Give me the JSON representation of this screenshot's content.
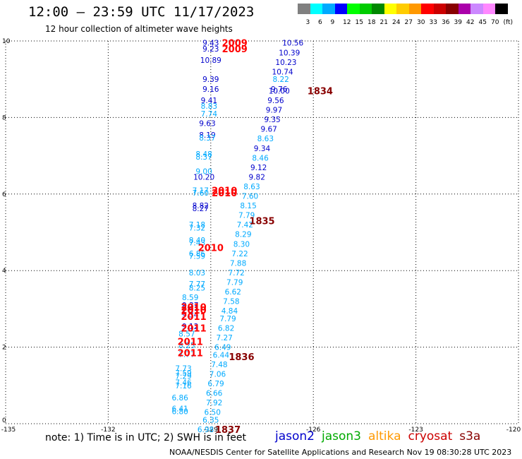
{
  "header": {
    "title": "12:00 — 23:59 UTC 11/17/2023",
    "subtitle": "12 hour collection of altimeter wave heights"
  },
  "colorbar": {
    "bins": [
      {
        "label": "3",
        "color": "#808080"
      },
      {
        "label": "6",
        "color": "#00ffff"
      },
      {
        "label": "9",
        "color": "#00aaff"
      },
      {
        "label": "12",
        "color": "#0000ff"
      },
      {
        "label": "15",
        "color": "#00ff00"
      },
      {
        "label": "18",
        "color": "#00cc00"
      },
      {
        "label": "21",
        "color": "#008800"
      },
      {
        "label": "24",
        "color": "#ffff00"
      },
      {
        "label": "27",
        "color": "#ffcc00"
      },
      {
        "label": "30",
        "color": "#ff9900"
      },
      {
        "label": "33",
        "color": "#ff0000"
      },
      {
        "label": "36",
        "color": "#cc0000"
      },
      {
        "label": "39",
        "color": "#880000"
      },
      {
        "label": "42",
        "color": "#aa00aa"
      },
      {
        "label": "45",
        "color": "#cc88ff"
      },
      {
        "label": "70",
        "color": "#ff88ff"
      },
      {
        "label": "(ft)",
        "color": "#000000"
      }
    ]
  },
  "footer": {
    "note": "note: 1) Time is in UTC; 2) SWH is in feet",
    "credit": "NOAA/NESDIS Center for Satellite Applications and Research   Nov 19 08:30:28 UTC 2023"
  },
  "missions": [
    {
      "name": "jason2",
      "color": "#0000cc"
    },
    {
      "name": "jason3",
      "color": "#00aa00"
    },
    {
      "name": "altika",
      "color": "#ff9900"
    },
    {
      "name": "cryosat",
      "color": "#cc0000"
    },
    {
      "name": "s3a",
      "color": "#880000"
    }
  ],
  "chart_data": {
    "type": "scatter",
    "xlim": [
      -135,
      -120
    ],
    "ylim": [
      0,
      10
    ],
    "xticks": [
      "-135",
      "-132",
      "-129",
      "-126",
      "-123",
      "-120"
    ],
    "yticks": [
      "0",
      "2",
      "4",
      "6",
      "8",
      "10"
    ],
    "grid": true,
    "wave_labels": [
      {
        "x": -129.0,
        "y": 9.95,
        "t": "9.43",
        "c": "#0000cc"
      },
      {
        "x": -129.0,
        "y": 9.8,
        "t": "9.23",
        "c": "#0000cc"
      },
      {
        "x": -129.0,
        "y": 9.5,
        "t": "10.89",
        "c": "#0000cc"
      },
      {
        "x": -129.0,
        "y": 9.0,
        "t": "9.39",
        "c": "#0000cc"
      },
      {
        "x": -129.0,
        "y": 8.75,
        "t": "9.16",
        "c": "#0000cc"
      },
      {
        "x": -129.05,
        "y": 8.45,
        "t": "9.41",
        "c": "#0000cc"
      },
      {
        "x": -129.05,
        "y": 8.3,
        "t": "8.83",
        "c": "#00aaff"
      },
      {
        "x": -129.05,
        "y": 8.1,
        "t": "7.74",
        "c": "#00aaff"
      },
      {
        "x": -129.1,
        "y": 7.85,
        "t": "9.63",
        "c": "#0000cc"
      },
      {
        "x": -129.1,
        "y": 7.55,
        "t": "8.19",
        "c": "#0000cc"
      },
      {
        "x": -129.1,
        "y": 7.47,
        "t": "8.37",
        "c": "#00aaff"
      },
      {
        "x": -129.2,
        "y": 7.05,
        "t": "8.48",
        "c": "#00aaff"
      },
      {
        "x": -129.2,
        "y": 6.97,
        "t": "8.37",
        "c": "#00aaff"
      },
      {
        "x": -129.2,
        "y": 6.6,
        "t": "9.00",
        "c": "#00aaff"
      },
      {
        "x": -129.2,
        "y": 6.45,
        "t": "10.20",
        "c": "#0000cc"
      },
      {
        "x": -129.3,
        "y": 6.1,
        "t": "7.17",
        "c": "#00aaff"
      },
      {
        "x": -129.3,
        "y": 6.03,
        "t": "7.60",
        "c": "#00aaff"
      },
      {
        "x": -129.3,
        "y": 5.7,
        "t": "8.82",
        "c": "#0000cc"
      },
      {
        "x": -129.3,
        "y": 5.63,
        "t": "8.27",
        "c": "#0000cc"
      },
      {
        "x": -129.4,
        "y": 5.2,
        "t": "7.18",
        "c": "#00aaff"
      },
      {
        "x": -129.4,
        "y": 5.12,
        "t": "7.32",
        "c": "#00aaff"
      },
      {
        "x": -129.4,
        "y": 4.8,
        "t": "8.40",
        "c": "#00aaff"
      },
      {
        "x": -129.4,
        "y": 4.73,
        "t": "7.43",
        "c": "#00aaff"
      },
      {
        "x": -129.4,
        "y": 4.45,
        "t": "6.86",
        "c": "#00aaff"
      },
      {
        "x": -129.4,
        "y": 4.38,
        "t": "7.59",
        "c": "#00aaff"
      },
      {
        "x": -129.4,
        "y": 3.95,
        "t": "8.03",
        "c": "#00aaff"
      },
      {
        "x": -129.4,
        "y": 3.65,
        "t": "7.77",
        "c": "#00aaff"
      },
      {
        "x": -129.4,
        "y": 3.55,
        "t": "8.25",
        "c": "#00aaff"
      },
      {
        "x": -129.6,
        "y": 3.3,
        "t": "8.59",
        "c": "#00aaff"
      },
      {
        "x": -129.6,
        "y": 3.1,
        "t": "9.37",
        "c": "#0000cc"
      },
      {
        "x": -129.6,
        "y": 3.03,
        "t": "9.41",
        "c": "#0000cc"
      },
      {
        "x": -129.6,
        "y": 2.85,
        "t": "9.34",
        "c": "#0000cc"
      },
      {
        "x": -129.6,
        "y": 2.55,
        "t": "9.12",
        "c": "#0000cc"
      },
      {
        "x": -129.7,
        "y": 2.35,
        "t": "8.57",
        "c": "#00aaff"
      },
      {
        "x": -129.7,
        "y": 2.05,
        "t": "8.25",
        "c": "#00aaff"
      },
      {
        "x": -129.7,
        "y": 1.82,
        "t": "7.77",
        "c": "#00aaff"
      },
      {
        "x": -129.8,
        "y": 1.45,
        "t": "7.73",
        "c": "#00aaff"
      },
      {
        "x": -129.8,
        "y": 1.33,
        "t": "7.59",
        "c": "#00aaff"
      },
      {
        "x": -129.8,
        "y": 1.25,
        "t": "7.29",
        "c": "#00aaff"
      },
      {
        "x": -129.8,
        "y": 1.08,
        "t": "7.46",
        "c": "#00aaff"
      },
      {
        "x": -129.8,
        "y": 1.0,
        "t": "7.16",
        "c": "#00aaff"
      },
      {
        "x": -129.9,
        "y": 0.68,
        "t": "6.86",
        "c": "#00aaff"
      },
      {
        "x": -129.9,
        "y": 0.4,
        "t": "6.41",
        "c": "#00aaff"
      },
      {
        "x": -129.9,
        "y": 0.32,
        "t": "6.80",
        "c": "#00aaff"
      },
      {
        "x": -126.6,
        "y": 9.95,
        "t": "10.56",
        "c": "#0000cc"
      },
      {
        "x": -126.7,
        "y": 9.7,
        "t": "10.39",
        "c": "#0000cc"
      },
      {
        "x": -126.8,
        "y": 9.45,
        "t": "10.23",
        "c": "#0000cc"
      },
      {
        "x": -126.9,
        "y": 9.2,
        "t": "10.74",
        "c": "#0000cc"
      },
      {
        "x": -126.95,
        "y": 9.0,
        "t": "8.22",
        "c": "#00aaff"
      },
      {
        "x": -127.0,
        "y": 8.75,
        "t": "9.76",
        "c": "#0000cc"
      },
      {
        "x": -127.0,
        "y": 8.7,
        "t": "10.00",
        "c": "#0000cc"
      },
      {
        "x": -127.1,
        "y": 8.45,
        "t": "9.56",
        "c": "#0000cc"
      },
      {
        "x": -127.15,
        "y": 8.2,
        "t": "9.97",
        "c": "#0000cc"
      },
      {
        "x": -127.2,
        "y": 7.95,
        "t": "9.35",
        "c": "#0000cc"
      },
      {
        "x": -127.3,
        "y": 7.7,
        "t": "9.67",
        "c": "#0000cc"
      },
      {
        "x": -127.4,
        "y": 7.45,
        "t": "8.63",
        "c": "#00aaff"
      },
      {
        "x": -127.5,
        "y": 7.2,
        "t": "9.34",
        "c": "#0000cc"
      },
      {
        "x": -127.55,
        "y": 6.95,
        "t": "8.46",
        "c": "#00aaff"
      },
      {
        "x": -127.6,
        "y": 6.7,
        "t": "9.12",
        "c": "#0000cc"
      },
      {
        "x": -127.65,
        "y": 6.45,
        "t": "9.82",
        "c": "#0000cc"
      },
      {
        "x": -127.8,
        "y": 6.2,
        "t": "8.63",
        "c": "#00aaff"
      },
      {
        "x": -127.85,
        "y": 5.95,
        "t": "7.60",
        "c": "#00aaff"
      },
      {
        "x": -127.9,
        "y": 5.7,
        "t": "8.15",
        "c": "#00aaff"
      },
      {
        "x": -127.95,
        "y": 5.45,
        "t": "7.79",
        "c": "#00aaff"
      },
      {
        "x": -128.0,
        "y": 5.2,
        "t": "7.42",
        "c": "#00aaff"
      },
      {
        "x": -128.05,
        "y": 4.95,
        "t": "8.29",
        "c": "#00aaff"
      },
      {
        "x": -128.1,
        "y": 4.7,
        "t": "8.30",
        "c": "#00aaff"
      },
      {
        "x": -128.15,
        "y": 4.45,
        "t": "7.22",
        "c": "#00aaff"
      },
      {
        "x": -128.2,
        "y": 4.2,
        "t": "7.88",
        "c": "#00aaff"
      },
      {
        "x": -128.25,
        "y": 3.95,
        "t": "7.72",
        "c": "#00aaff"
      },
      {
        "x": -128.3,
        "y": 3.7,
        "t": "7.79",
        "c": "#00aaff"
      },
      {
        "x": -128.35,
        "y": 3.45,
        "t": "6.62",
        "c": "#00aaff"
      },
      {
        "x": -128.4,
        "y": 3.2,
        "t": "7.58",
        "c": "#00aaff"
      },
      {
        "x": -128.45,
        "y": 2.95,
        "t": "4.84",
        "c": "#00aaff"
      },
      {
        "x": -128.5,
        "y": 2.75,
        "t": "7.79",
        "c": "#00aaff"
      },
      {
        "x": -128.55,
        "y": 2.5,
        "t": "6.82",
        "c": "#00aaff"
      },
      {
        "x": -128.6,
        "y": 2.25,
        "t": "7.27",
        "c": "#00aaff"
      },
      {
        "x": -128.65,
        "y": 2.0,
        "t": "6.49",
        "c": "#00aaff"
      },
      {
        "x": -128.7,
        "y": 1.8,
        "t": "6.44",
        "c": "#00aaff"
      },
      {
        "x": -128.75,
        "y": 1.55,
        "t": "7.48",
        "c": "#00aaff"
      },
      {
        "x": -128.8,
        "y": 1.3,
        "t": "7.06",
        "c": "#00aaff"
      },
      {
        "x": -128.85,
        "y": 1.05,
        "t": "6.79",
        "c": "#00aaff"
      },
      {
        "x": -128.9,
        "y": 0.8,
        "t": "6.66",
        "c": "#00aaff"
      },
      {
        "x": -128.9,
        "y": 0.55,
        "t": "7.92",
        "c": "#00aaff"
      },
      {
        "x": -128.95,
        "y": 0.3,
        "t": "6.50",
        "c": "#00aaff"
      },
      {
        "x": -129.0,
        "y": 0.1,
        "t": "6.35",
        "c": "#00aaff"
      },
      {
        "x": -129.15,
        "y": -0.15,
        "t": "6.98",
        "c": "#00aaff"
      }
    ],
    "pass_labels": [
      {
        "x": -128.3,
        "y": 9.95,
        "t": "2009",
        "c": "#ff0000"
      },
      {
        "x": -128.3,
        "y": 9.8,
        "t": "2009",
        "c": "#ff0000"
      },
      {
        "x": -125.8,
        "y": 8.7,
        "t": "1834",
        "c": "#880000"
      },
      {
        "x": -128.6,
        "y": 6.1,
        "t": "2010",
        "c": "#ff0000"
      },
      {
        "x": -128.6,
        "y": 6.03,
        "t": "2010",
        "c": "#ff0000"
      },
      {
        "x": -127.5,
        "y": 5.3,
        "t": "1835",
        "c": "#880000"
      },
      {
        "x": -129.0,
        "y": 4.6,
        "t": "2010",
        "c": "#ff0000"
      },
      {
        "x": -129.5,
        "y": 3.05,
        "t": "2010",
        "c": "#ff0000"
      },
      {
        "x": -129.5,
        "y": 2.97,
        "t": "2010",
        "c": "#ff0000"
      },
      {
        "x": -129.5,
        "y": 2.8,
        "t": "2011",
        "c": "#ff0000"
      },
      {
        "x": -129.5,
        "y": 2.5,
        "t": "2011",
        "c": "#ff0000"
      },
      {
        "x": -129.6,
        "y": 2.15,
        "t": "2011",
        "c": "#ff0000"
      },
      {
        "x": -129.6,
        "y": 1.85,
        "t": "2011",
        "c": "#ff0000"
      },
      {
        "x": -128.1,
        "y": 1.75,
        "t": "1836",
        "c": "#880000"
      },
      {
        "x": -128.5,
        "y": -0.15,
        "t": "1837",
        "c": "#880000"
      }
    ]
  }
}
